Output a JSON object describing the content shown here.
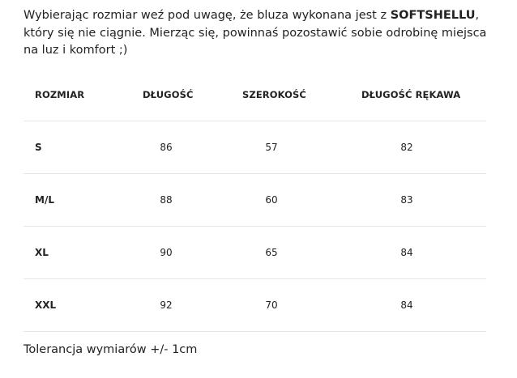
{
  "intro": {
    "text_before": "Wybierając rozmiar weź pod uwagę, że bluza wykonana jest z ",
    "highlight": "SOFTSHELLU",
    "text_after": ", który się nie ciągnie. Mierząc się, powinnaś pozostawić sobie odrobinę miejsca na luz i komfort ;)"
  },
  "table": {
    "headers": [
      "ROZMIAR",
      "DŁUGOŚĆ",
      "SZEROKOŚĆ",
      "DŁUGOŚĆ RĘKAWA"
    ],
    "rows": [
      [
        "S",
        "86",
        "57",
        "82"
      ],
      [
        "M/L",
        "88",
        "60",
        "83"
      ],
      [
        "XL",
        "90",
        "65",
        "84"
      ],
      [
        "XXL",
        "92",
        "70",
        "84"
      ]
    ]
  },
  "tolerance": "Tolerancja wymiarów +/- 1cm"
}
